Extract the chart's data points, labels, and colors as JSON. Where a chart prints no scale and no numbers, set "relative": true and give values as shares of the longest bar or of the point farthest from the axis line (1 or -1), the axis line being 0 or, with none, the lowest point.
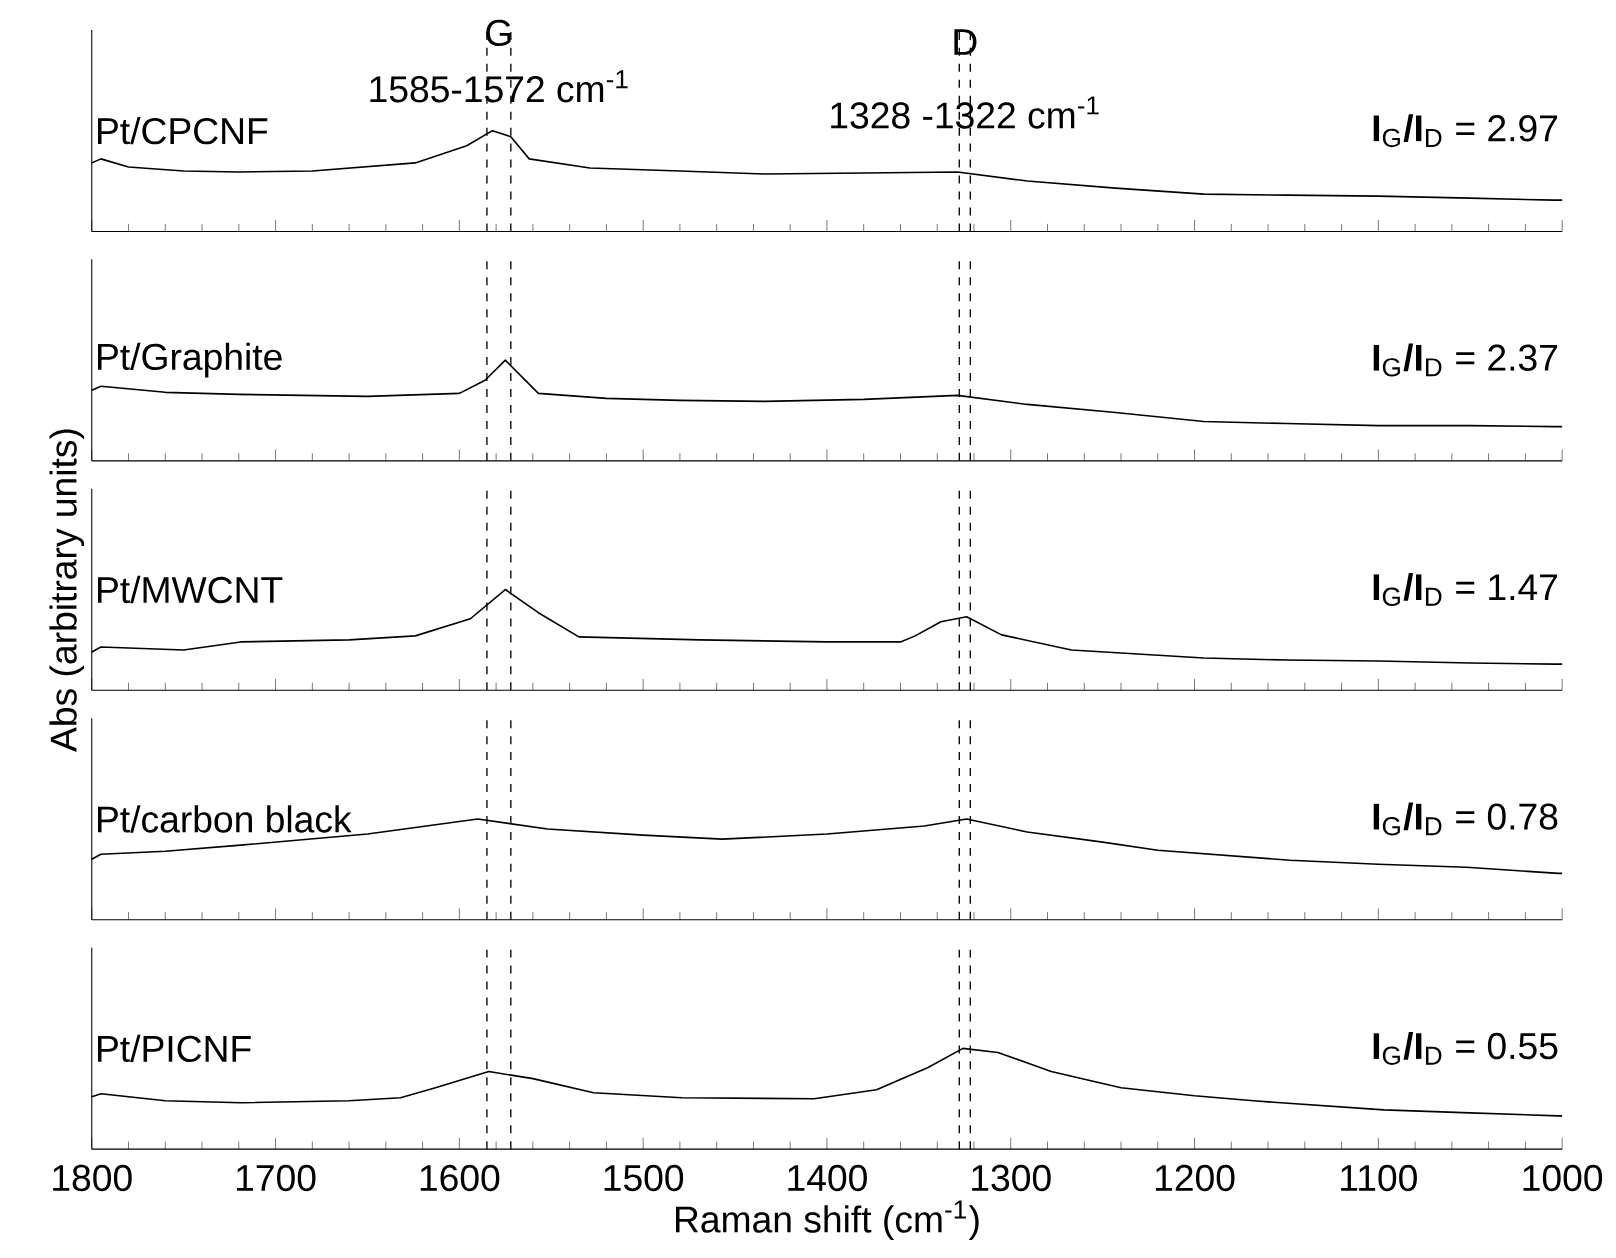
{
  "chart_data": [
    {
      "type": "line",
      "relative": true,
      "xlim": [
        1800,
        1000
      ],
      "xticks": [
        1800,
        1700,
        1600,
        1500,
        1400,
        1300,
        1200,
        1100,
        1000
      ],
      "tick_labels": false,
      "line_style": "solid",
      "x": [
        1800,
        1795,
        1780,
        1750,
        1720,
        1680,
        1624,
        1596,
        1582,
        1572,
        1562,
        1529,
        1480,
        1434,
        1380,
        1329,
        1291,
        1243,
        1195,
        1150,
        1100,
        1050,
        1004,
        1000
      ],
      "series": [
        {
          "name": "Pt/CPCNF",
          "color": "#000000",
          "values": [
            0.68,
            0.72,
            0.64,
            0.6,
            0.59,
            0.6,
            0.68,
            0.85,
            1.0,
            0.94,
            0.72,
            0.63,
            0.6,
            0.57,
            0.58,
            0.59,
            0.5,
            0.43,
            0.37,
            0.36,
            0.35,
            0.33,
            0.31,
            0.31
          ]
        }
      ],
      "ref_lines": [
        {
          "axis": "x",
          "value": 1585,
          "color": "#000000",
          "line_style": "dashed"
        },
        {
          "axis": "x",
          "value": 1572,
          "color": "#000000",
          "line_style": "dashed"
        },
        {
          "axis": "x",
          "value": 1328,
          "color": "#000000",
          "line_style": "dashed"
        },
        {
          "axis": "x",
          "value": 1322,
          "color": "#000000",
          "line_style": "dashed"
        }
      ],
      "annotations": [
        "G",
        "1585-1572 cm$^{-1}$",
        "D",
        "1328 -1322 cm$^{-1}$",
        "**I**$_{G}$**/I**$_{D}$ = 2.97"
      ]
    },
    {
      "type": "line",
      "relative": true,
      "xlim": [
        1800,
        1000
      ],
      "xticks": [
        1800,
        1700,
        1600,
        1500,
        1400,
        1300,
        1200,
        1100,
        1000
      ],
      "tick_labels": false,
      "line_style": "solid",
      "x": [
        1800,
        1795,
        1760,
        1720,
        1650,
        1600,
        1586,
        1575,
        1557,
        1520,
        1480,
        1434,
        1380,
        1329,
        1291,
        1243,
        1195,
        1150,
        1100,
        1050,
        1004,
        1000
      ],
      "series": [
        {
          "name": "Pt/Graphite",
          "color": "#000000",
          "values": [
            0.7,
            0.74,
            0.68,
            0.66,
            0.64,
            0.67,
            0.8,
            1.0,
            0.67,
            0.62,
            0.6,
            0.59,
            0.61,
            0.65,
            0.56,
            0.48,
            0.39,
            0.37,
            0.35,
            0.35,
            0.34,
            0.34
          ]
        }
      ],
      "ref_lines": [
        {
          "axis": "x",
          "value": 1585,
          "color": "#000000",
          "line_style": "dashed"
        },
        {
          "axis": "x",
          "value": 1572,
          "color": "#000000",
          "line_style": "dashed"
        },
        {
          "axis": "x",
          "value": 1328,
          "color": "#000000",
          "line_style": "dashed"
        },
        {
          "axis": "x",
          "value": 1322,
          "color": "#000000",
          "line_style": "dashed"
        }
      ],
      "annotations": [
        "**I**$_{G}$**/I**$_{D}$ = 2.37"
      ]
    },
    {
      "type": "line",
      "relative": true,
      "xlim": [
        1800,
        1000
      ],
      "xticks": [
        1800,
        1700,
        1600,
        1500,
        1400,
        1300,
        1200,
        1100,
        1000
      ],
      "tick_labels": false,
      "line_style": "solid",
      "ylabel": "Abs (arbitrary units)",
      "x": [
        1800,
        1795,
        1750,
        1719,
        1660,
        1624,
        1594,
        1575,
        1557,
        1535,
        1469,
        1400,
        1360,
        1352,
        1338,
        1324,
        1305,
        1267,
        1195,
        1150,
        1100,
        1050,
        1004,
        1000
      ],
      "series": [
        {
          "name": "Pt/MWCNT",
          "color": "#000000",
          "values": [
            0.38,
            0.43,
            0.4,
            0.48,
            0.5,
            0.54,
            0.71,
            1.0,
            0.77,
            0.53,
            0.5,
            0.48,
            0.48,
            0.54,
            0.68,
            0.73,
            0.55,
            0.4,
            0.32,
            0.3,
            0.29,
            0.27,
            0.26,
            0.26
          ]
        }
      ],
      "ref_lines": [
        {
          "axis": "x",
          "value": 1585,
          "color": "#000000",
          "line_style": "dashed"
        },
        {
          "axis": "x",
          "value": 1572,
          "color": "#000000",
          "line_style": "dashed"
        },
        {
          "axis": "x",
          "value": 1328,
          "color": "#000000",
          "line_style": "dashed"
        },
        {
          "axis": "x",
          "value": 1322,
          "color": "#000000",
          "line_style": "dashed"
        }
      ],
      "annotations": [
        "**I**$_{G}$**/I**$_{D}$ = 1.47"
      ]
    },
    {
      "type": "line",
      "relative": true,
      "xlim": [
        1800,
        1000
      ],
      "xticks": [
        1800,
        1700,
        1600,
        1500,
        1400,
        1300,
        1200,
        1100,
        1000
      ],
      "tick_labels": false,
      "line_style": "solid",
      "x": [
        1800,
        1795,
        1760,
        1719,
        1650,
        1590,
        1552,
        1500,
        1457,
        1400,
        1347,
        1324,
        1291,
        1250,
        1220,
        1148,
        1100,
        1052,
        1002,
        1000
      ],
      "series": [
        {
          "name": "Pt/carbon black",
          "color": "#000000",
          "values": [
            0.6,
            0.65,
            0.68,
            0.74,
            0.85,
            1.0,
            0.9,
            0.84,
            0.8,
            0.85,
            0.93,
            1.0,
            0.87,
            0.77,
            0.69,
            0.59,
            0.55,
            0.52,
            0.46,
            0.46
          ]
        }
      ],
      "ref_lines": [
        {
          "axis": "x",
          "value": 1585,
          "color": "#000000",
          "line_style": "dashed"
        },
        {
          "axis": "x",
          "value": 1572,
          "color": "#000000",
          "line_style": "dashed"
        },
        {
          "axis": "x",
          "value": 1328,
          "color": "#000000",
          "line_style": "dashed"
        },
        {
          "axis": "x",
          "value": 1322,
          "color": "#000000",
          "line_style": "dashed"
        }
      ],
      "annotations": [
        "**I**$_{G}$**/I**$_{D}$ = 0.78"
      ]
    },
    {
      "type": "line",
      "relative": true,
      "xlim": [
        1800,
        1000
      ],
      "xticks": [
        1800,
        1700,
        1600,
        1500,
        1400,
        1300,
        1200,
        1100,
        1000
      ],
      "tick_labels": "x",
      "line_style": "solid",
      "xlabel": "Raman shift (cm$^{-1}$)",
      "x": [
        1800,
        1795,
        1760,
        1719,
        1660,
        1632,
        1613,
        1584,
        1560,
        1527,
        1479,
        1407,
        1373,
        1345,
        1326,
        1307,
        1278,
        1240,
        1200,
        1168,
        1097,
        1050,
        1002,
        1000
      ],
      "series": [
        {
          "name": "Pt/PICNF",
          "color": "#000000",
          "values": [
            0.52,
            0.55,
            0.48,
            0.46,
            0.48,
            0.51,
            0.61,
            0.77,
            0.7,
            0.56,
            0.51,
            0.5,
            0.59,
            0.81,
            1.0,
            0.96,
            0.77,
            0.61,
            0.53,
            0.48,
            0.39,
            0.36,
            0.33,
            0.33
          ]
        }
      ],
      "ref_lines": [
        {
          "axis": "x",
          "value": 1585,
          "color": "#000000",
          "line_style": "dashed"
        },
        {
          "axis": "x",
          "value": 1572,
          "color": "#000000",
          "line_style": "dashed"
        },
        {
          "axis": "x",
          "value": 1328,
          "color": "#000000",
          "line_style": "dashed"
        },
        {
          "axis": "x",
          "value": 1322,
          "color": "#000000",
          "line_style": "dashed"
        }
      ],
      "annotations": [
        "**I**$_{G}$**/I**$_{D}$ = 0.55"
      ]
    }
  ]
}
